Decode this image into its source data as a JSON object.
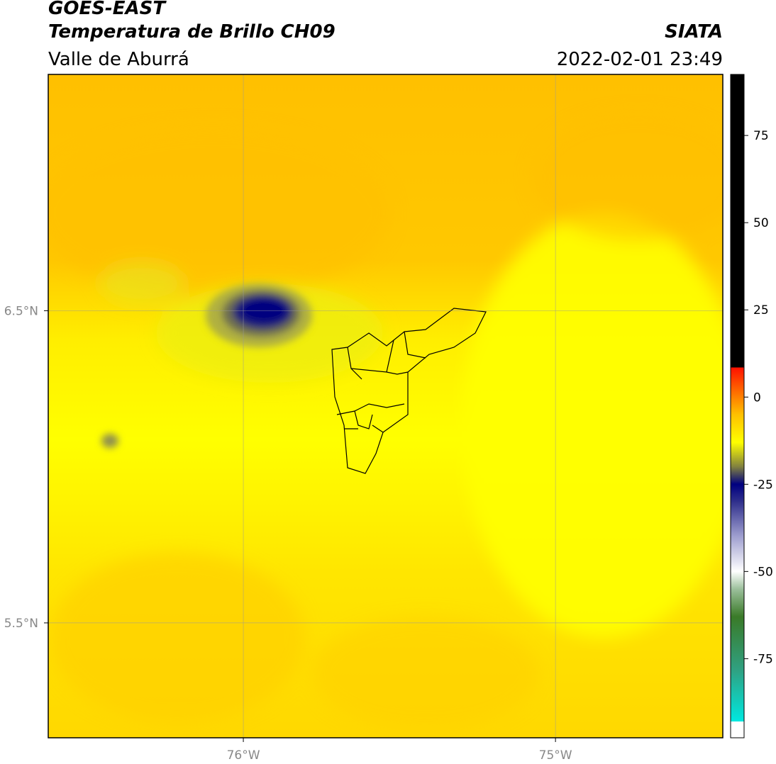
{
  "header": {
    "title": "GOES-EAST",
    "product": "Temperatura de Brillo CH09",
    "region": "Valle de Aburrá",
    "source": "SIATA",
    "timestamp": "2022-02-01 23:49"
  },
  "map": {
    "xlim": [
      -76.625,
      -74.464
    ],
    "ylim": [
      5.132,
      7.257
    ],
    "xticks": [
      {
        "value": -76,
        "label": "76°W"
      },
      {
        "value": -75,
        "label": "75°W"
      }
    ],
    "yticks": [
      {
        "value": 6.5,
        "label": "6.5°N"
      },
      {
        "value": 5.5,
        "label": "5.5°N"
      }
    ],
    "grid": true
  },
  "colorbar": {
    "lim": [
      -93,
      92.5
    ],
    "ticks": [
      75,
      50,
      25,
      0,
      -25,
      -50,
      -75
    ],
    "stops": [
      {
        "value": -93,
        "color": "#00e8e0"
      },
      {
        "value": -78,
        "color": "#30a080"
      },
      {
        "value": -63,
        "color": "#3a7a28"
      },
      {
        "value": -55,
        "color": "#9cc09c"
      },
      {
        "value": -50,
        "color": "#ffffff"
      },
      {
        "value": -40,
        "color": "#a0a0d0"
      },
      {
        "value": -30,
        "color": "#30308c"
      },
      {
        "value": -25,
        "color": "#000080"
      },
      {
        "value": -20,
        "color": "#808040"
      },
      {
        "value": -13,
        "color": "#ffff00"
      },
      {
        "value": -5,
        "color": "#ffc000"
      },
      {
        "value": 0,
        "color": "#ff8000"
      },
      {
        "value": 8.5,
        "color": "#ff1000"
      },
      {
        "value": 8.5,
        "color": "#000000"
      },
      {
        "value": 92.5,
        "color": "#000000"
      }
    ]
  }
}
